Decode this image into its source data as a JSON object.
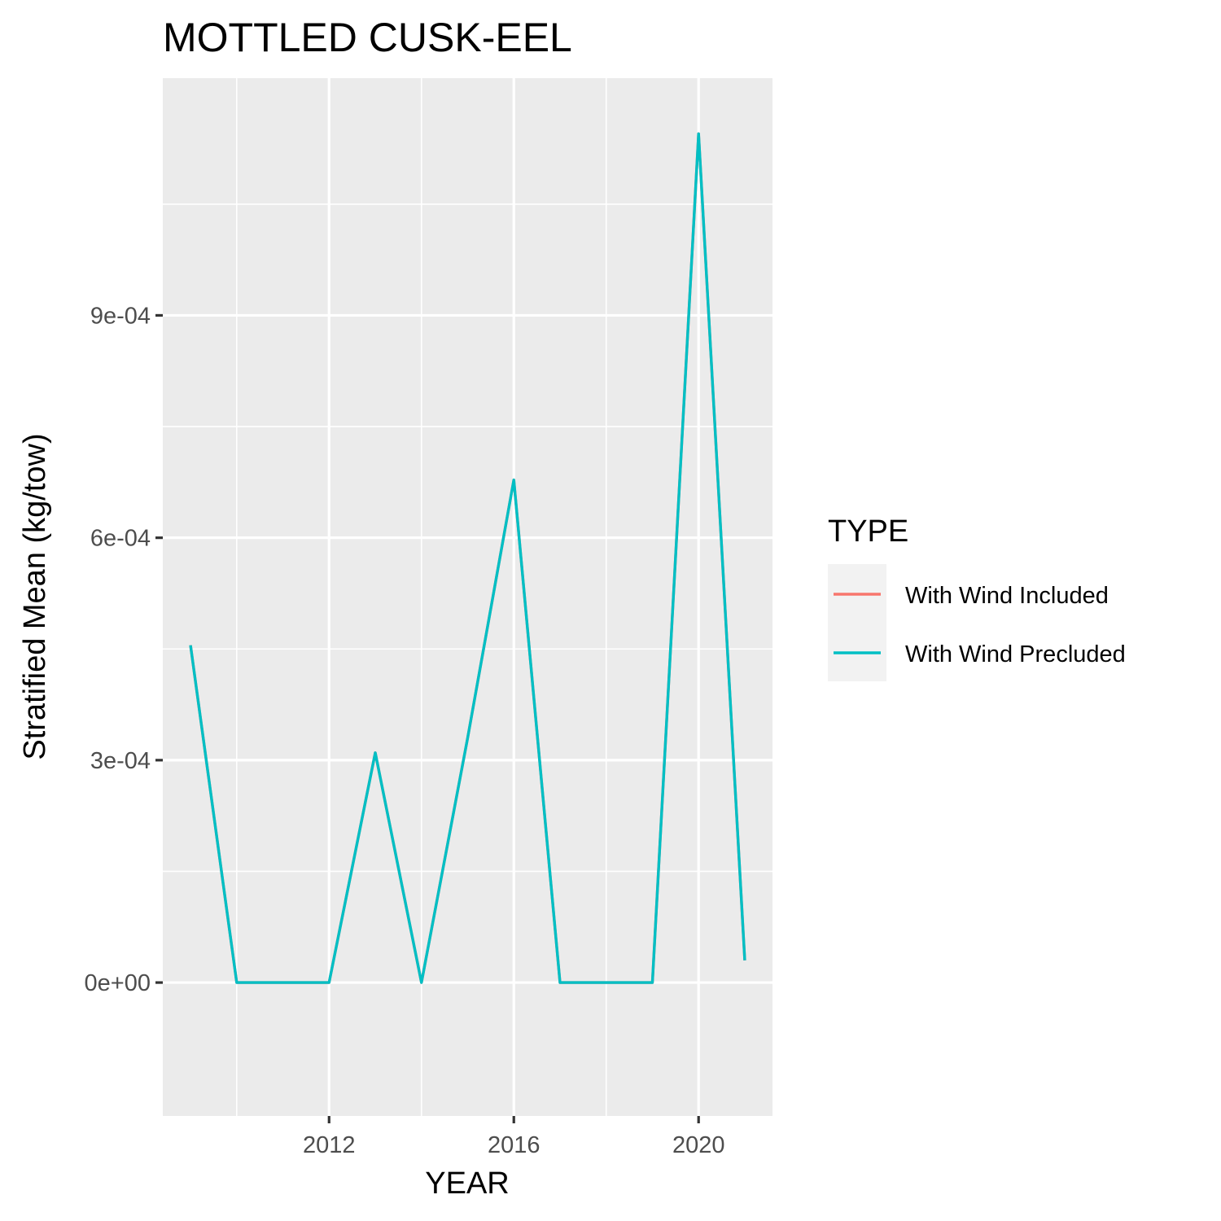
{
  "chart_data": {
    "type": "line",
    "title": "MOTTLED CUSK-EEL",
    "xlabel": "YEAR",
    "ylabel": "Stratified Mean (kg/tow)",
    "xlim": [
      2008.4,
      2021.6
    ],
    "ylim": [
      -0.00018,
      0.00122
    ],
    "x_ticks": [
      2012,
      2016,
      2020
    ],
    "x_tick_labels": [
      "2012",
      "2016",
      "2020"
    ],
    "x_minor_ticks": [
      2010,
      2014,
      2018
    ],
    "y_ticks": [
      0,
      0.0003,
      0.0006,
      0.0009
    ],
    "y_tick_labels": [
      "0e+00",
      "3e-04",
      "6e-04",
      "9e-04"
    ],
    "y_minor_ticks": [
      0.00015,
      0.00045,
      0.00075,
      0.00105
    ],
    "grid": true,
    "legend": {
      "title": "TYPE",
      "position": "right",
      "entries": [
        {
          "label": "With Wind Included",
          "color": "#F8766D"
        },
        {
          "label": "With Wind Precluded",
          "color": "#00BFC4"
        }
      ]
    },
    "x": [
      2009,
      2010,
      2011,
      2012,
      2013,
      2014,
      2015,
      2016,
      2017,
      2018,
      2019,
      2020,
      2021
    ],
    "series": [
      {
        "name": "With Wind Included",
        "color": "#F8766D",
        "values": [
          0.000455,
          0,
          0,
          0,
          0.00031,
          0,
          0.00033,
          0.000678,
          0,
          0,
          0,
          0.001145,
          3e-05
        ]
      },
      {
        "name": "With Wind Precluded",
        "color": "#00BFC4",
        "values": [
          0.000455,
          0,
          0,
          0,
          0.00031,
          0,
          0.00033,
          0.000678,
          0,
          0,
          0,
          0.001145,
          3e-05
        ]
      }
    ]
  },
  "colors": {
    "panel_background": "#EBEBEB",
    "grid": "#FFFFFF",
    "legend_key_background": "#F2F2F2"
  }
}
